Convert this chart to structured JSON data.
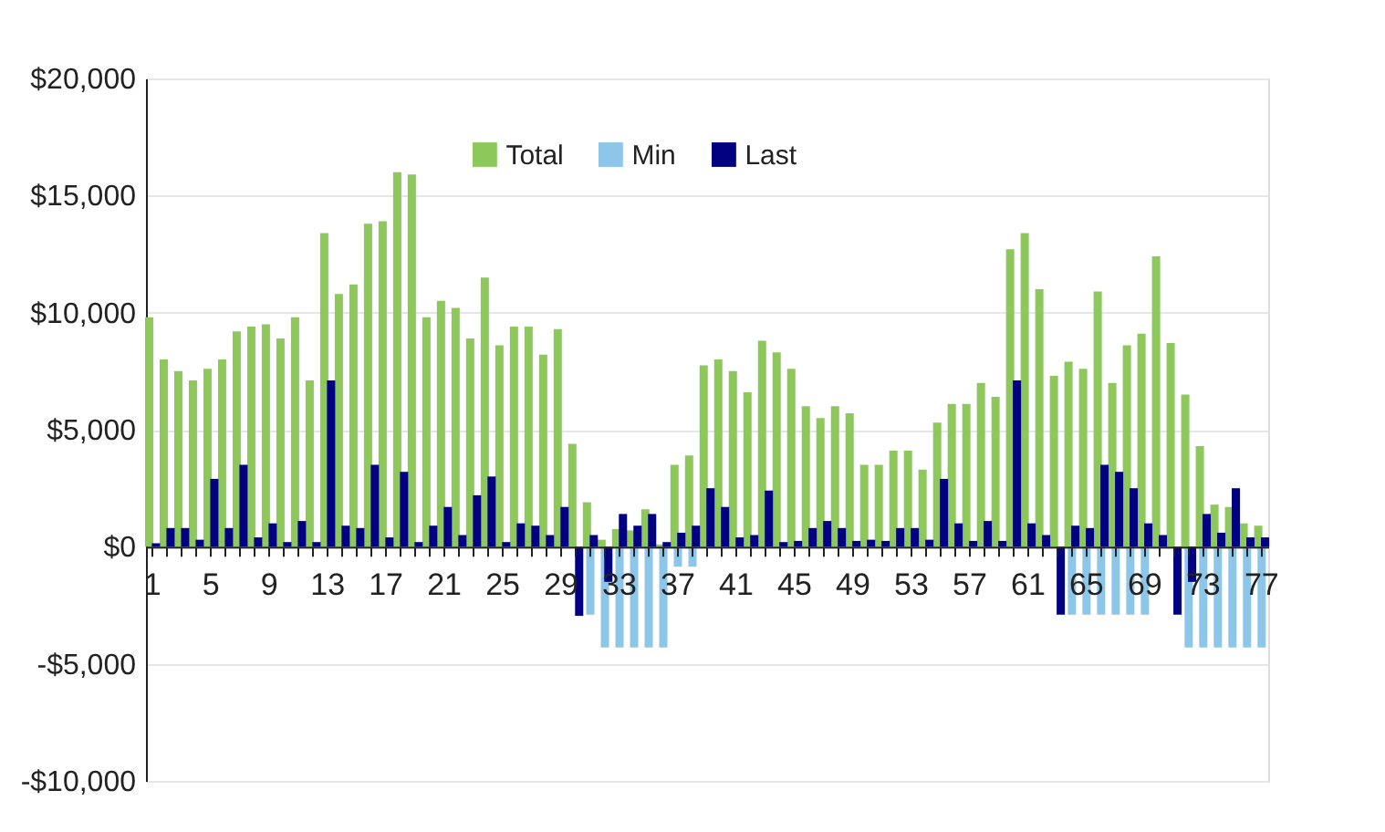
{
  "chart_data": {
    "type": "bar",
    "categories": [
      "1",
      null,
      null,
      null,
      "5",
      null,
      null,
      null,
      "9",
      null,
      null,
      null,
      "13",
      null,
      null,
      null,
      "17",
      null,
      null,
      null,
      "21",
      null,
      null,
      null,
      "25",
      null,
      null,
      null,
      "29",
      null,
      null,
      null,
      "33",
      null,
      null,
      null,
      "37",
      null,
      null,
      null,
      "41",
      null,
      null,
      null,
      "45",
      null,
      null,
      null,
      "49",
      null,
      null,
      null,
      "53",
      null,
      null,
      null,
      "57",
      null,
      null,
      null,
      "61",
      null,
      null,
      null,
      "65",
      null,
      null,
      null,
      "69",
      null,
      null,
      null,
      "73",
      null,
      null,
      null,
      "77"
    ],
    "series": [
      {
        "name": "Total",
        "color": "#8cc95a",
        "values": [
          9800,
          8000,
          7500,
          7100,
          7600,
          8000,
          9200,
          9400,
          9500,
          8900,
          9800,
          7100,
          13400,
          10800,
          11200,
          13800,
          13900,
          16000,
          15900,
          9800,
          10500,
          10200,
          8900,
          11500,
          8600,
          9400,
          9400,
          8200,
          9300,
          4400,
          1900,
          300,
          750,
          700,
          1600,
          100,
          3500,
          3900,
          7750,
          8000,
          7500,
          6600,
          8800,
          8300,
          7600,
          6000,
          5500,
          6000,
          5700,
          3500,
          3500,
          4100,
          4100,
          3300,
          5300,
          6100,
          6100,
          7000,
          6400,
          12700,
          13400,
          11000,
          7300,
          7900,
          7600,
          10900,
          7000,
          8600,
          9100,
          12400,
          8700,
          6500,
          4300,
          1800,
          1700,
          1000,
          900
        ]
      },
      {
        "name": "Min",
        "color": "#8ec6ea",
        "values": [
          0,
          0,
          0,
          0,
          0,
          0,
          0,
          0,
          0,
          0,
          0,
          0,
          0,
          0,
          0,
          0,
          0,
          0,
          0,
          0,
          0,
          0,
          0,
          0,
          0,
          0,
          0,
          0,
          0,
          0,
          -2900,
          -4300,
          -4300,
          -4300,
          -4300,
          -4300,
          -850,
          -850,
          0,
          0,
          0,
          0,
          0,
          0,
          0,
          0,
          0,
          0,
          0,
          0,
          0,
          0,
          0,
          0,
          0,
          0,
          0,
          0,
          0,
          0,
          0,
          0,
          0,
          -2900,
          -2900,
          -2900,
          -2900,
          -2900,
          -2900,
          0,
          0,
          -4300,
          -4300,
          -4300,
          -4300,
          -4300,
          -4300
        ]
      },
      {
        "name": "Last",
        "color": "#000080",
        "values": [
          150,
          800,
          800,
          300,
          2900,
          800,
          3500,
          400,
          1000,
          200,
          1100,
          200,
          7100,
          900,
          800,
          3500,
          400,
          3200,
          200,
          900,
          1700,
          500,
          2200,
          3000,
          200,
          1000,
          900,
          500,
          1700,
          -2950,
          500,
          -1500,
          1400,
          900,
          1400,
          200,
          600,
          900,
          2500,
          1700,
          400,
          500,
          2400,
          200,
          250,
          800,
          1100,
          800,
          250,
          300,
          250,
          800,
          800,
          300,
          2900,
          1000,
          250,
          1100,
          250,
          7100,
          1000,
          500,
          -2900,
          900,
          800,
          3500,
          3200,
          2500,
          1000,
          500,
          -2900,
          -1500,
          1400,
          600,
          2500,
          400,
          400
        ]
      }
    ],
    "ylim": [
      -10000,
      20000
    ],
    "yticks": [
      {
        "value": -10000,
        "label": "-$10,000"
      },
      {
        "value": -5000,
        "label": "-$5,000"
      },
      {
        "value": 0,
        "label": "$0"
      },
      {
        "value": 5000,
        "label": "$5,000"
      },
      {
        "value": 10000,
        "label": "$10,000"
      },
      {
        "value": 15000,
        "label": "$15,000"
      },
      {
        "value": 20000,
        "label": "$20,000"
      }
    ],
    "grid": "y",
    "legend": "top"
  }
}
